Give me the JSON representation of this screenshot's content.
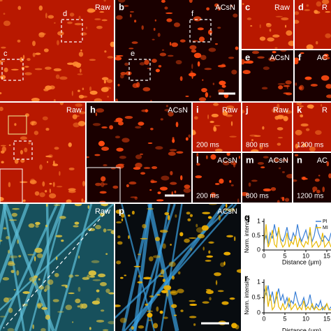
{
  "panels": [
    {
      "tag": "Raw",
      "rois": [
        "d",
        "c"
      ]
    },
    {
      "letter": "b",
      "tag": "ACsN",
      "rois": [
        "f",
        "e"
      ]
    },
    {
      "letter": "c",
      "tag": "Raw"
    },
    {
      "letter": "d",
      "tag": "R"
    },
    {
      "letter": "e",
      "tag": "ACsN"
    },
    {
      "letter": "f",
      "tag": "AC"
    },
    {
      "tag": "Raw"
    },
    {
      "letter": "h",
      "tag": "ACsN"
    },
    {
      "letter": "i",
      "tag": "Raw",
      "time": "200 ms"
    },
    {
      "letter": "j",
      "tag": "Raw",
      "time": "800 ms"
    },
    {
      "letter": "k",
      "tag": "R",
      "time": "1200 ms"
    },
    {
      "letter": "l",
      "tag": "ACsN",
      "time": "200 ms"
    },
    {
      "letter": "m",
      "tag": "ACsN",
      "time": "800 ms"
    },
    {
      "letter": "n",
      "tag": "AC",
      "time": "1200 ms"
    },
    {
      "tag": "Raw"
    },
    {
      "letter": "p",
      "tag": "ACsN"
    }
  ],
  "plots": [
    {
      "letter": "q",
      "ylabel": "Norm. intensity",
      "xlabel": "Distance (μm)",
      "x": [
        0,
        0.5,
        1,
        1.5,
        2,
        2.5,
        3,
        3.5,
        4,
        4.5,
        5,
        5.5,
        6,
        6.5,
        7,
        7.5,
        8,
        8.5,
        9,
        9.5,
        10,
        10.5,
        11,
        11.5,
        12,
        12.5,
        13,
        13.5,
        14,
        14.5,
        15,
        15.5,
        16
      ],
      "xlim": [
        0,
        16
      ],
      "ylim": [
        0,
        1.1
      ],
      "xticks": [
        0,
        5,
        10,
        15
      ],
      "yticks": [
        0,
        0.5,
        1
      ],
      "series": [
        {
          "name": "PI",
          "color": "#3a7fd5",
          "values": [
            0.3,
            0.5,
            0.2,
            0.6,
            0.4,
            0.9,
            0.5,
            0.7,
            0.4,
            0.3,
            0.5,
            0.8,
            0.4,
            0.3,
            0.6,
            0.4,
            0.9,
            0.5,
            0.3,
            0.5,
            0.7,
            0.4,
            0.6,
            0.3,
            0.5,
            0.9,
            0.6,
            0.4,
            0.3,
            0.5,
            0.4,
            0.3,
            0.6
          ]
        },
        {
          "name": "MI",
          "color": "#e8b800",
          "values": [
            0.2,
            0.9,
            0.1,
            0.3,
            0.7,
            0.2,
            0.1,
            0.8,
            0.3,
            0.1,
            0.2,
            0.6,
            0.1,
            0.3,
            0.2,
            0.5,
            0.1,
            0.4,
            0.2,
            0.1,
            0.3,
            0.2,
            0.8,
            0.1,
            0.2,
            0.3,
            0.1,
            0.2,
            0.6,
            0.1,
            0.2,
            0.3,
            0.1
          ]
        }
      ]
    },
    {
      "letter": "r",
      "ylabel": "Norm. intensity",
      "xlabel": "Distance (μm)",
      "x": [
        0,
        0.5,
        1,
        1.5,
        2,
        2.5,
        3,
        3.5,
        4,
        4.5,
        5,
        5.5,
        6,
        6.5,
        7,
        7.5,
        8,
        8.5,
        9,
        9.5,
        10,
        10.5,
        11,
        11.5,
        12,
        12.5,
        13,
        13.5,
        14,
        14.5,
        15,
        15.5,
        16
      ],
      "xlim": [
        0,
        16
      ],
      "ylim": [
        0,
        1.1
      ],
      "xticks": [
        0,
        5,
        10,
        15
      ],
      "yticks": [
        0,
        0.5,
        1
      ],
      "series": [
        {
          "color": "#3a7fd5",
          "values": [
            0.8,
            0.6,
            0.9,
            0.4,
            0.7,
            0.3,
            0.5,
            0.8,
            0.4,
            0.6,
            0.3,
            0.5,
            0.2,
            0.4,
            0.3,
            0.7,
            0.4,
            0.2,
            0.3,
            0.5,
            0.2,
            0.3,
            0.6,
            0.2,
            0.1,
            0.3,
            0.2,
            0.4,
            0.1,
            0.2,
            0.3,
            0.1,
            0.2
          ]
        },
        {
          "color": "#e8b800",
          "values": [
            0.3,
            0.9,
            0.2,
            0.6,
            0.1,
            0.2,
            0.7,
            0.2,
            0.1,
            0.3,
            0.1,
            0.2,
            0.5,
            0.1,
            0.2,
            0.3,
            0.1,
            0.2,
            0.1,
            0.4,
            0.1,
            0.2,
            0.1,
            0.3,
            0.1,
            0.2,
            0.1,
            0.1,
            0.2,
            0.1,
            0.3,
            0.1,
            0.1
          ]
        }
      ]
    }
  ]
}
